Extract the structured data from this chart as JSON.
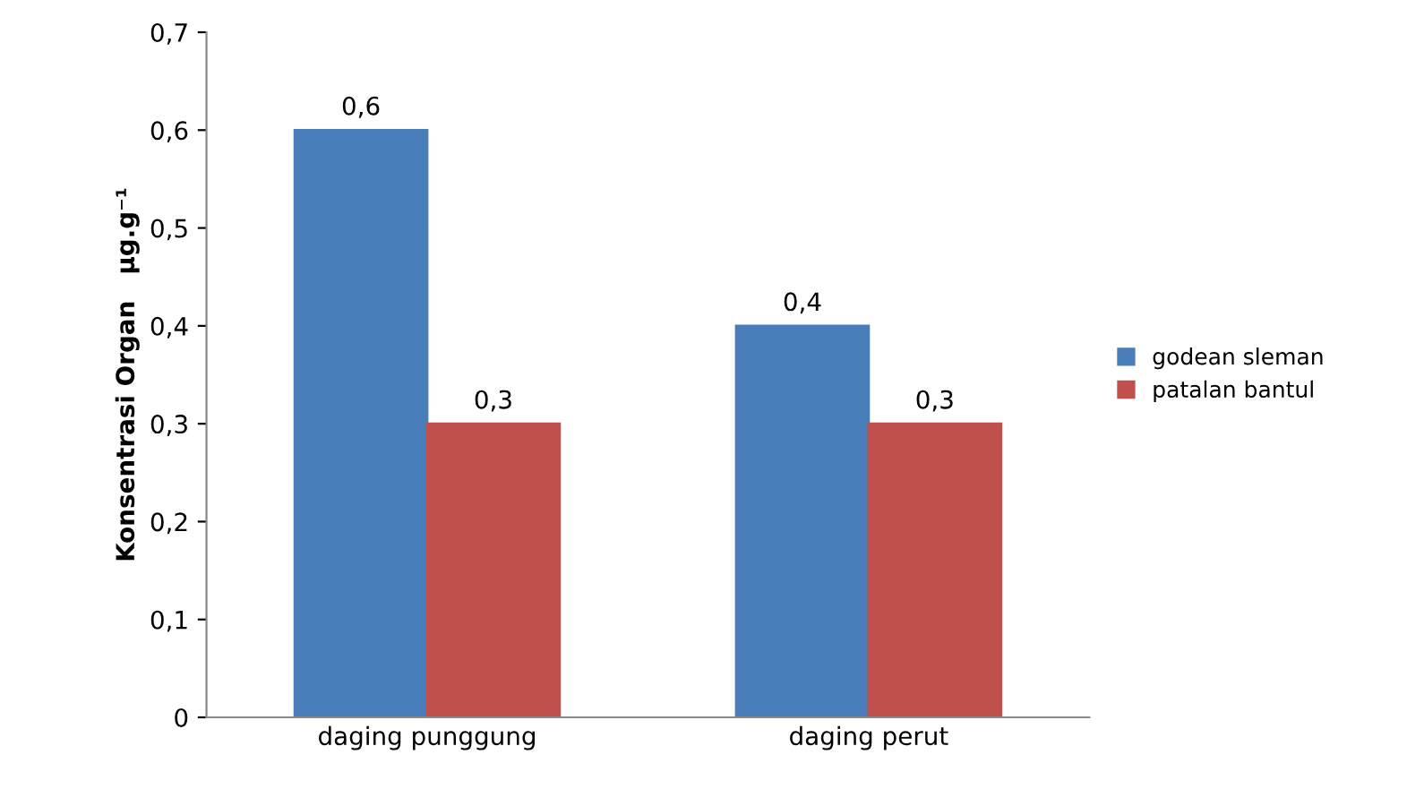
{
  "chart_data": {
    "type": "bar",
    "ylabel": "Konsentrasi Organ   µg.g⁻¹",
    "categories": [
      "daging punggung",
      "daging perut"
    ],
    "series": [
      {
        "name": "godean sleman",
        "color": "#4a7ebb",
        "values": [
          0.6,
          0.4
        ],
        "value_labels": [
          "0,6",
          "0,4"
        ]
      },
      {
        "name": "patalan bantul",
        "color": "#c0504d",
        "values": [
          0.3,
          0.3
        ],
        "value_labels": [
          "0,3",
          "0,3"
        ]
      }
    ],
    "ylim": [
      0,
      0.7
    ],
    "yticks": [
      {
        "value": 0,
        "label": "0"
      },
      {
        "value": 0.1,
        "label": "0,1"
      },
      {
        "value": 0.2,
        "label": "0,2"
      },
      {
        "value": 0.3,
        "label": "0,3"
      },
      {
        "value": 0.4,
        "label": "0,4"
      },
      {
        "value": 0.5,
        "label": "0,5"
      },
      {
        "value": 0.6,
        "label": "0,6"
      },
      {
        "value": 0.7,
        "label": "0,7"
      }
    ],
    "grid": false,
    "legend": "right"
  }
}
